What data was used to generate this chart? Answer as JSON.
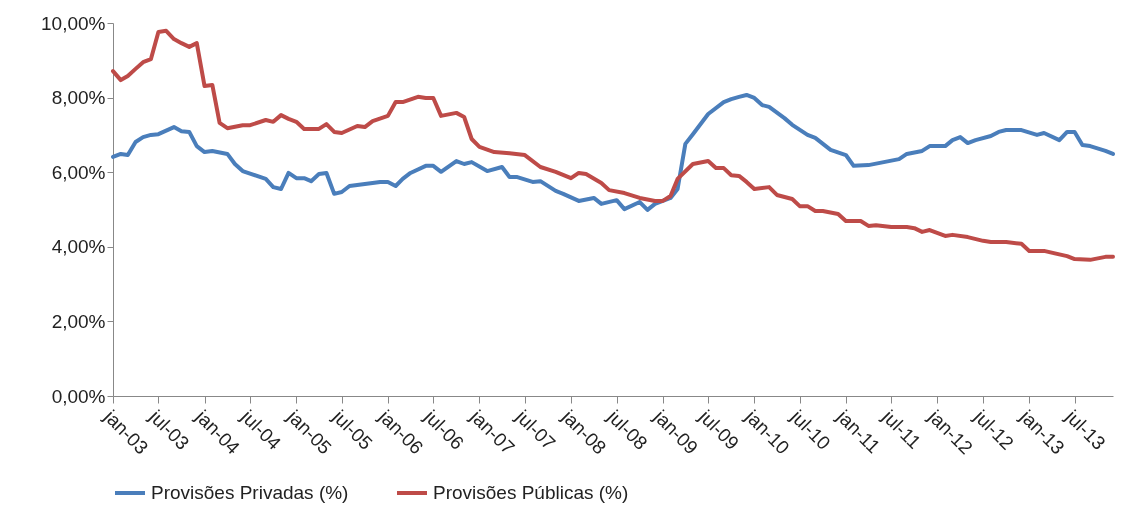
{
  "chart_data": {
    "type": "line",
    "series": [
      {
        "name": "Provisões Privadas (%)",
        "color": "#4a7ebb",
        "x": [
          "2003-01",
          "2003-02",
          "2003-03",
          "2003-04",
          "2003-05",
          "2003-06",
          "2003-07",
          "2003-09",
          "2003-10",
          "2003-11",
          "2003-12",
          "2004-01",
          "2004-02",
          "2004-04",
          "2004-05",
          "2004-06",
          "2004-09",
          "2004-10",
          "2004-11",
          "2004-12",
          "2005-01",
          "2005-02",
          "2005-03",
          "2005-04",
          "2005-05",
          "2005-06",
          "2005-07",
          "2005-08",
          "2005-11",
          "2005-12",
          "2006-01",
          "2006-02",
          "2006-03",
          "2006-04",
          "2006-06",
          "2006-07",
          "2006-08",
          "2006-10",
          "2006-11",
          "2006-12",
          "2007-02",
          "2007-04",
          "2007-05",
          "2007-06",
          "2007-08",
          "2007-09",
          "2007-11",
          "2007-12",
          "2008-02",
          "2008-04",
          "2008-05",
          "2008-07",
          "2008-08",
          "2008-10",
          "2008-11",
          "2008-12",
          "2009-02",
          "2009-03",
          "2009-04",
          "2009-05",
          "2009-07",
          "2009-09",
          "2009-10",
          "2009-11",
          "2009-12",
          "2010-01",
          "2010-02",
          "2010-03",
          "2010-05",
          "2010-06",
          "2010-08",
          "2010-09",
          "2010-11",
          "2011-01",
          "2011-02",
          "2011-04",
          "2011-06",
          "2011-08",
          "2011-09",
          "2011-11",
          "2011-12",
          "2012-02",
          "2012-03",
          "2012-04",
          "2012-05",
          "2012-06",
          "2012-08",
          "2012-09",
          "2012-10",
          "2012-12",
          "2013-02",
          "2013-03",
          "2013-05",
          "2013-06",
          "2013-07",
          "2013-08",
          "2013-09",
          "2013-11",
          "2013-12"
        ],
        "values": [
          6.41,
          6.49,
          6.46,
          6.81,
          6.94,
          7.0,
          7.02,
          7.21,
          7.1,
          7.08,
          6.7,
          6.54,
          6.57,
          6.49,
          6.22,
          6.03,
          5.82,
          5.6,
          5.55,
          5.98,
          5.84,
          5.84,
          5.76,
          5.95,
          5.98,
          5.42,
          5.47,
          5.63,
          5.71,
          5.74,
          5.74,
          5.63,
          5.82,
          5.98,
          6.17,
          6.17,
          6.01,
          6.3,
          6.22,
          6.27,
          6.03,
          6.14,
          5.87,
          5.87,
          5.74,
          5.76,
          5.5,
          5.42,
          5.23,
          5.31,
          5.15,
          5.25,
          5.01,
          5.2,
          4.99,
          5.15,
          5.31,
          5.55,
          6.76,
          7.02,
          7.56,
          7.88,
          7.96,
          8.02,
          8.07,
          7.99,
          7.8,
          7.75,
          7.45,
          7.27,
          7.0,
          6.92,
          6.6,
          6.46,
          6.17,
          6.19,
          6.27,
          6.35,
          6.49,
          6.57,
          6.7,
          6.7,
          6.86,
          6.94,
          6.78,
          6.86,
          6.97,
          7.08,
          7.13,
          7.13,
          7.0,
          7.05,
          6.86,
          7.08,
          7.08,
          6.73,
          6.7,
          6.57,
          6.49
        ]
      },
      {
        "name": "Provisões Públicas (%)",
        "color": "#be4b48",
        "x": [
          "2003-01",
          "2003-02",
          "2003-03",
          "2003-04",
          "2003-05",
          "2003-06",
          "2003-07",
          "2003-08",
          "2003-09",
          "2003-10",
          "2003-11",
          "2003-12",
          "2004-01",
          "2004-02",
          "2004-03",
          "2004-04",
          "2004-06",
          "2004-07",
          "2004-09",
          "2004-10",
          "2004-11",
          "2004-12",
          "2005-01",
          "2005-02",
          "2005-04",
          "2005-05",
          "2005-06",
          "2005-07",
          "2005-09",
          "2005-10",
          "2005-11",
          "2006-01",
          "2006-02",
          "2006-03",
          "2006-05",
          "2006-06",
          "2006-07",
          "2006-08",
          "2006-10",
          "2006-11",
          "2006-12",
          "2007-01",
          "2007-03",
          "2007-05",
          "2007-07",
          "2007-09",
          "2007-11",
          "2008-01",
          "2008-02",
          "2008-03",
          "2008-05",
          "2008-06",
          "2008-08",
          "2008-10",
          "2008-12",
          "2009-01",
          "2009-02",
          "2009-03",
          "2009-05",
          "2009-07",
          "2009-08",
          "2009-09",
          "2009-10",
          "2009-11",
          "2009-12",
          "2010-01",
          "2010-03",
          "2010-04",
          "2010-06",
          "2010-07",
          "2010-08",
          "2010-09",
          "2010-10",
          "2010-12",
          "2011-01",
          "2011-03",
          "2011-04",
          "2011-05",
          "2011-07",
          "2011-09",
          "2011-10",
          "2011-11",
          "2011-12",
          "2012-02",
          "2012-03",
          "2012-05",
          "2012-07",
          "2012-08",
          "2012-10",
          "2012-12",
          "2013-01",
          "2013-03",
          "2013-06",
          "2013-07",
          "2013-09",
          "2013-11",
          "2013-12"
        ],
        "values": [
          8.71,
          8.47,
          8.58,
          8.77,
          8.95,
          9.03,
          9.76,
          9.79,
          9.57,
          9.46,
          9.36,
          9.46,
          8.31,
          8.34,
          7.32,
          7.18,
          7.26,
          7.26,
          7.4,
          7.35,
          7.53,
          7.43,
          7.35,
          7.16,
          7.16,
          7.29,
          7.08,
          7.05,
          7.24,
          7.21,
          7.37,
          7.51,
          7.88,
          7.88,
          8.02,
          7.99,
          7.99,
          7.51,
          7.59,
          7.48,
          6.89,
          6.68,
          6.54,
          6.51,
          6.46,
          6.14,
          6.01,
          5.84,
          5.98,
          5.95,
          5.71,
          5.52,
          5.44,
          5.31,
          5.23,
          5.23,
          5.36,
          5.82,
          6.22,
          6.3,
          6.11,
          6.11,
          5.92,
          5.9,
          5.74,
          5.55,
          5.6,
          5.39,
          5.28,
          5.09,
          5.09,
          4.96,
          4.96,
          4.88,
          4.69,
          4.69,
          4.56,
          4.58,
          4.53,
          4.53,
          4.5,
          4.4,
          4.45,
          4.29,
          4.32,
          4.26,
          4.16,
          4.13,
          4.13,
          4.08,
          3.89,
          3.89,
          3.75,
          3.67,
          3.65,
          3.73,
          3.73
        ]
      }
    ],
    "xlim": [
      "2003-01",
      "2013-12"
    ],
    "xticks": [
      {
        "value": "2003-01",
        "label": "jan-03"
      },
      {
        "value": "2003-07",
        "label": "jul-03"
      },
      {
        "value": "2004-01",
        "label": "jan-04"
      },
      {
        "value": "2004-07",
        "label": "jul-04"
      },
      {
        "value": "2005-01",
        "label": "jan-05"
      },
      {
        "value": "2005-07",
        "label": "jul-05"
      },
      {
        "value": "2006-01",
        "label": "jan-06"
      },
      {
        "value": "2006-07",
        "label": "jul-06"
      },
      {
        "value": "2007-01",
        "label": "jan-07"
      },
      {
        "value": "2007-07",
        "label": "jul-07"
      },
      {
        "value": "2008-01",
        "label": "jan-08"
      },
      {
        "value": "2008-07",
        "label": "jul-08"
      },
      {
        "value": "2009-01",
        "label": "jan-09"
      },
      {
        "value": "2009-07",
        "label": "jul-09"
      },
      {
        "value": "2010-01",
        "label": "jan-10"
      },
      {
        "value": "2010-07",
        "label": "jul-10"
      },
      {
        "value": "2011-01",
        "label": "jan-11"
      },
      {
        "value": "2011-07",
        "label": "jul-11"
      },
      {
        "value": "2012-01",
        "label": "jan-12"
      },
      {
        "value": "2012-07",
        "label": "jul-12"
      },
      {
        "value": "2013-01",
        "label": "jan-13"
      },
      {
        "value": "2013-07",
        "label": "jul-13"
      }
    ],
    "ylim": [
      0,
      10
    ],
    "yticks": [
      {
        "value": 0,
        "label": "0,00%"
      },
      {
        "value": 2,
        "label": "2,00%"
      },
      {
        "value": 4,
        "label": "4,00%"
      },
      {
        "value": 6,
        "label": "6,00%"
      },
      {
        "value": 8,
        "label": "8,00%"
      },
      {
        "value": 10,
        "label": "10,00%"
      }
    ],
    "grid": false,
    "legend": "bottom",
    "line_style": "solid",
    "marker": "none"
  }
}
